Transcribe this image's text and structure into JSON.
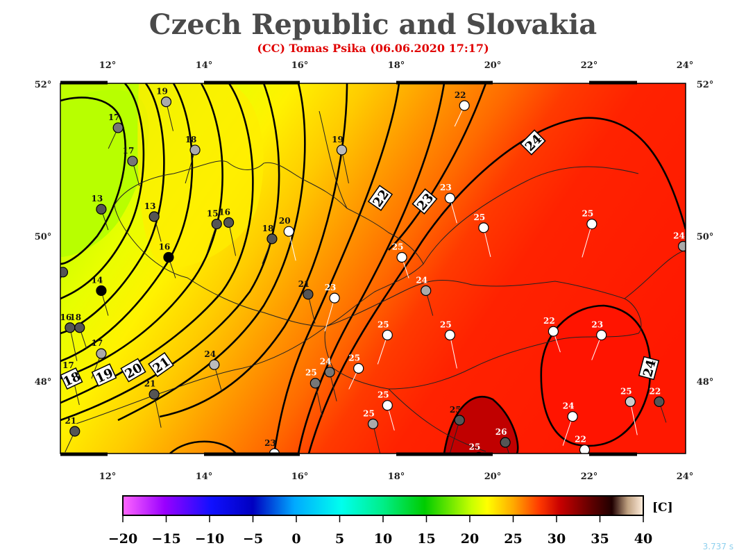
{
  "map": {
    "title": "Czech Republic and Slovakia",
    "subtitle": "(CC) Tomas Psika (06.06.2020 17:17)",
    "longitude_ticks": [
      "12°",
      "14°",
      "16°",
      "18°",
      "20°",
      "22°",
      "24°"
    ],
    "latitude_ticks": [
      "52°",
      "50°",
      "48°"
    ],
    "lon_range": [
      11,
      24
    ],
    "lat_range": [
      47,
      52
    ]
  },
  "colorbar": {
    "unit_label": "[C]",
    "ticks": [
      "−20",
      "−15",
      "−10",
      "−5",
      "0",
      "5",
      "10",
      "15",
      "20",
      "25",
      "30",
      "35",
      "40"
    ],
    "range": [
      -20,
      40
    ]
  },
  "isotherm_labels": [
    "19",
    "20",
    "21",
    "22",
    "23",
    "24",
    "18"
  ],
  "stations": [
    {
      "t": "17",
      "lon": 12.2,
      "lat": 51.4,
      "fill": "#777777"
    },
    {
      "t": "17",
      "lon": 12.5,
      "lat": 50.95,
      "fill": "#777777"
    },
    {
      "t": "19",
      "lon": 13.2,
      "lat": 51.75,
      "fill": "#aaaaaa"
    },
    {
      "t": "18",
      "lon": 13.8,
      "lat": 51.1,
      "fill": "#aaaaaa"
    },
    {
      "t": "13",
      "lon": 11.85,
      "lat": 50.3,
      "fill": "#555555"
    },
    {
      "t": "13",
      "lon": 12.95,
      "lat": 50.2,
      "fill": "#555555"
    },
    {
      "t": "15",
      "lon": 14.25,
      "lat": 50.1,
      "fill": "#555555"
    },
    {
      "t": "16",
      "lon": 14.5,
      "lat": 50.12,
      "fill": "#555555"
    },
    {
      "t": "16",
      "lon": 13.25,
      "lat": 49.65,
      "fill": "#000000"
    },
    {
      "t": "18",
      "lon": 15.4,
      "lat": 49.9,
      "fill": "#555555"
    },
    {
      "t": "20",
      "lon": 15.75,
      "lat": 50.0,
      "fill": "#ffffff"
    },
    {
      "t": "19",
      "lon": 16.85,
      "lat": 51.1,
      "fill": "#bbbbbb"
    },
    {
      "t": "22",
      "lon": 19.4,
      "lat": 51.7,
      "fill": "#ffffff"
    },
    {
      "t": "23",
      "lon": 19.1,
      "lat": 50.45,
      "fill": "#ffffff"
    },
    {
      "t": "25",
      "lon": 19.8,
      "lat": 50.05,
      "fill": "#ffffff"
    },
    {
      "t": "25",
      "lon": 22.05,
      "lat": 50.1,
      "fill": "#ffffff"
    },
    {
      "t": "24",
      "lon": 23.95,
      "lat": 49.8,
      "fill": "#aaaaaa"
    },
    {
      "t": "14",
      "lon": 11.85,
      "lat": 49.2,
      "fill": "#000000"
    },
    {
      "t": "",
      "lon": 11.05,
      "lat": 49.45,
      "fill": "#555555"
    },
    {
      "t": "16",
      "lon": 11.2,
      "lat": 48.7,
      "fill": "#555555"
    },
    {
      "t": "18",
      "lon": 11.4,
      "lat": 48.7,
      "fill": "#555555"
    },
    {
      "t": "17",
      "lon": 11.85,
      "lat": 48.35,
      "fill": "#aaaaaa"
    },
    {
      "t": "17",
      "lon": 11.25,
      "lat": 48.05,
      "fill": "#555555"
    },
    {
      "t": "21",
      "lon": 12.95,
      "lat": 47.8,
      "fill": "#555555"
    },
    {
      "t": "21",
      "lon": 11.3,
      "lat": 47.3,
      "fill": "#555555"
    },
    {
      "t": "24",
      "lon": 14.2,
      "lat": 48.2,
      "fill": "#bbbbbb"
    },
    {
      "t": "21",
      "lon": 16.15,
      "lat": 49.15,
      "fill": "#555555"
    },
    {
      "t": "23",
      "lon": 16.7,
      "lat": 49.1,
      "fill": "#ffffff"
    },
    {
      "t": "25",
      "lon": 18.1,
      "lat": 49.65,
      "fill": "#ffffff"
    },
    {
      "t": "24",
      "lon": 18.6,
      "lat": 49.2,
      "fill": "#aaaaaa"
    },
    {
      "t": "25",
      "lon": 17.8,
      "lat": 48.6,
      "fill": "#ffffff"
    },
    {
      "t": "25",
      "lon": 19.1,
      "lat": 48.6,
      "fill": "#ffffff"
    },
    {
      "t": "22",
      "lon": 21.25,
      "lat": 48.65,
      "fill": "#ffffff"
    },
    {
      "t": "23",
      "lon": 22.25,
      "lat": 48.6,
      "fill": "#ffffff"
    },
    {
      "t": "24",
      "lon": 16.6,
      "lat": 48.1,
      "fill": "#777777"
    },
    {
      "t": "25",
      "lon": 16.3,
      "lat": 47.95,
      "fill": "#777777"
    },
    {
      "t": "25",
      "lon": 17.2,
      "lat": 48.15,
      "fill": "#ffffff"
    },
    {
      "t": "25",
      "lon": 17.8,
      "lat": 47.65,
      "fill": "#ffffff"
    },
    {
      "t": "25",
      "lon": 17.5,
      "lat": 47.4,
      "fill": "#aaaaaa"
    },
    {
      "t": "25",
      "lon": 19.3,
      "lat": 47.45,
      "fill": "#555555"
    },
    {
      "t": "26",
      "lon": 20.25,
      "lat": 47.15,
      "fill": "#555555"
    },
    {
      "t": "25",
      "lon": 19.7,
      "lat": 46.95,
      "fill": "#ffffff"
    },
    {
      "t": "24",
      "lon": 21.65,
      "lat": 47.5,
      "fill": "#ffffff"
    },
    {
      "t": "25",
      "lon": 22.85,
      "lat": 47.7,
      "fill": "#cccccc"
    },
    {
      "t": "22",
      "lon": 23.45,
      "lat": 47.7,
      "fill": "#555555"
    },
    {
      "t": "22",
      "lon": 21.9,
      "lat": 47.05,
      "fill": "#ffffff"
    },
    {
      "t": "23",
      "lon": 15.45,
      "lat": 47.0,
      "fill": "#ffffff"
    }
  ],
  "ui": {
    "render_time": "3.737 s"
  }
}
